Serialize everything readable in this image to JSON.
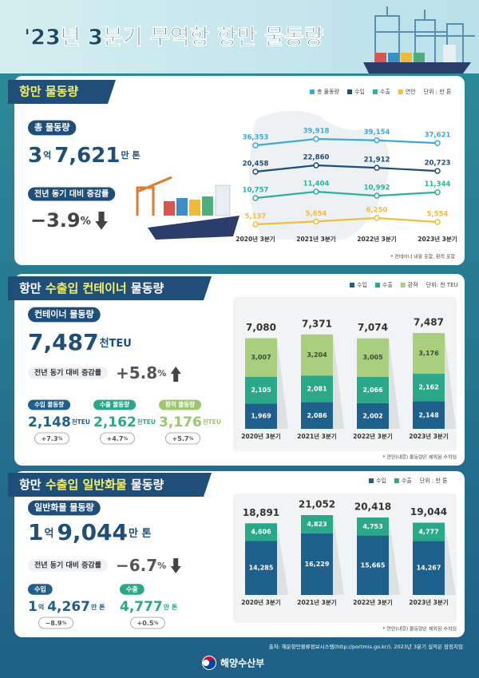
{
  "header": {
    "title": "'23년 3분기 무역항 항만 물동량"
  },
  "sections": [
    {
      "tab": [
        "항만 물동량"
      ],
      "total_label": "총 물동량",
      "total_value": [
        "3",
        "7,621"
      ],
      "total_units": [
        "억",
        "만 톤"
      ],
      "change_label": "전년 동기 대비 증감률",
      "change": "−3.9",
      "change_unit": "%",
      "direction": "down"
    },
    {
      "tab": [
        "항만",
        "수출입 컨테이너",
        "물동량"
      ],
      "total_label": "컨테이너 물동량",
      "total_value": [
        "7,487"
      ],
      "total_units": [
        "천TEU"
      ],
      "change_label": "전년 동기 대비 증감률",
      "change": "+5.8",
      "change_unit": "%",
      "direction": "up",
      "items": [
        {
          "label": "수입 물동량",
          "value": [
            "2,148"
          ],
          "unit": [
            "천TEU"
          ],
          "change": "+7.3",
          "change_unit": "%",
          "color": "#1f5f8b"
        },
        {
          "label": "수출 물동량",
          "value": [
            "2,162"
          ],
          "unit": [
            "천TEU"
          ],
          "change": "+4.7",
          "change_unit": "%",
          "color": "#2aa889"
        },
        {
          "label": "환적 물동량",
          "value": [
            "3,176"
          ],
          "unit": [
            "천TEU"
          ],
          "change": "+5.7",
          "change_unit": "%",
          "color": "#9cc76e"
        }
      ]
    },
    {
      "tab": [
        "항만",
        "수출입 일반화물",
        "물동량"
      ],
      "total_label": "일반화물 물동량",
      "total_value": [
        "1",
        "9,044"
      ],
      "total_units": [
        "억",
        "만 톤"
      ],
      "change_label": "전년 동기 대비 증감률",
      "change": "−6.7",
      "change_unit": "%",
      "direction": "down",
      "items": [
        {
          "label": "수입",
          "value": [
            "1",
            "4,267"
          ],
          "unit": [
            "억",
            "만 톤"
          ],
          "change": "−8.9",
          "change_unit": "%",
          "color": "#1f5f8b"
        },
        {
          "label": "수출",
          "value": [
            "4,777"
          ],
          "unit": [
            "만 톤"
          ],
          "change": "+0.5",
          "change_unit": "%",
          "color": "#2aa889"
        }
      ]
    }
  ],
  "chart_data": [
    {
      "type": "line",
      "categories": [
        "2020년 3분기",
        "2021년 3분기",
        "2022년 3분기",
        "2023년 3분기"
      ],
      "series": [
        {
          "name": "총 물동량",
          "color": "#3fa9dc",
          "values": [
            36353,
            39918,
            39154,
            37621
          ],
          "value_labels": [
            "36,353",
            "39,918",
            "39,154",
            "37,621"
          ]
        },
        {
          "name": "수입",
          "color": "#1f4e79",
          "values": [
            20458,
            22860,
            21912,
            20723
          ],
          "value_labels": [
            "20,458",
            "22,860",
            "21,912",
            "20,723"
          ]
        },
        {
          "name": "수출",
          "color": "#2bb39a",
          "values": [
            10757,
            11404,
            10992,
            11344
          ],
          "value_labels": [
            "10,757",
            "11,404",
            "10,992",
            "11,344"
          ]
        },
        {
          "name": "연안",
          "color": "#f2bd3c",
          "values": [
            5137,
            5654,
            6250,
            5554
          ],
          "value_labels": [
            "5,137",
            "5,654",
            "6,250",
            "5,554"
          ]
        }
      ],
      "unit_label": "단위 : 만 톤",
      "note": "* 컨테이너 내용 포함, 환적 포함"
    },
    {
      "type": "bar",
      "stacked": true,
      "categories": [
        "2020년 3분기",
        "2021년 3분기",
        "2022년 3분기",
        "2023년 3분기"
      ],
      "series": [
        {
          "name": "수입",
          "color": "#1f5f8b",
          "values": [
            1969,
            2086,
            2002,
            2148
          ],
          "value_labels": [
            "1,969",
            "2,086",
            "2,002",
            "2,148"
          ]
        },
        {
          "name": "수출",
          "color": "#2aa889",
          "values": [
            2105,
            2081,
            2066,
            2162
          ],
          "value_labels": [
            "2,105",
            "2,081",
            "2,066",
            "2,162"
          ]
        },
        {
          "name": "환적",
          "color": "#a9cf7e",
          "values": [
            3007,
            3204,
            3005,
            3176
          ],
          "value_labels": [
            "3,007",
            "3,204",
            "3,005",
            "3,176"
          ]
        }
      ],
      "totals": [
        7080,
        7371,
        7074,
        7487
      ],
      "total_labels": [
        "7,080",
        "7,371",
        "7,074",
        "7,487"
      ],
      "unit_label": "단위: 천 TEU",
      "note": "* 연안(내항) 물동량은 제외된 수치임"
    },
    {
      "type": "bar",
      "stacked": true,
      "categories": [
        "2020년 3분기",
        "2021년 3분기",
        "2022년 3분기",
        "2023년 3분기"
      ],
      "series": [
        {
          "name": "수입",
          "color": "#1f5f8b",
          "values": [
            14285,
            16229,
            15665,
            14267
          ],
          "value_labels": [
            "14,285",
            "16,229",
            "15,665",
            "14,267"
          ]
        },
        {
          "name": "수출",
          "color": "#2aa889",
          "values": [
            4606,
            4823,
            4753,
            4777
          ],
          "value_labels": [
            "4,606",
            "4,823",
            "4,753",
            "4,777"
          ]
        }
      ],
      "totals": [
        18891,
        21052,
        20418,
        19044
      ],
      "total_labels": [
        "18,891",
        "21,052",
        "20,418",
        "19,044"
      ],
      "unit_label": "단위 : 만 톤",
      "note": "* 연안(내항) 물동량은 제외된 수치임"
    }
  ],
  "footer": {
    "source": "출처: 해운항만물류정보시스템(http://portmis.go.kr/), 2023년 3분기 실적은 잠정치임",
    "org": "해양수산부"
  }
}
